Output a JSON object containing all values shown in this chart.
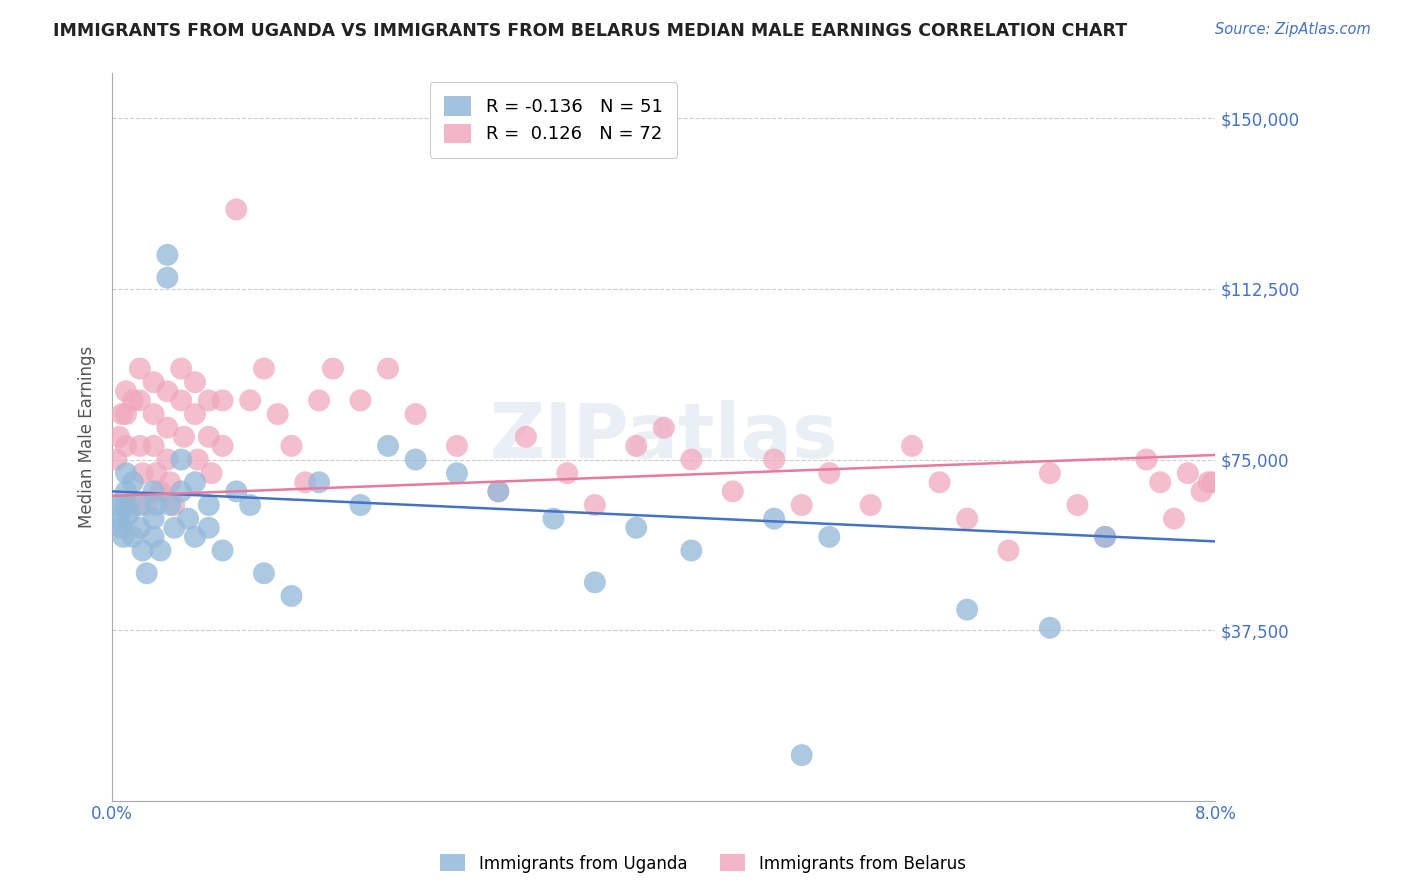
{
  "title": "IMMIGRANTS FROM UGANDA VS IMMIGRANTS FROM BELARUS MEDIAN MALE EARNINGS CORRELATION CHART",
  "source": "Source: ZipAtlas.com",
  "ylabel": "Median Male Earnings",
  "xlim": [
    0.0,
    0.08
  ],
  "ylim": [
    0,
    160000
  ],
  "yticks": [
    0,
    37500,
    75000,
    112500,
    150000
  ],
  "ytick_labels": [
    "",
    "$37,500",
    "$75,000",
    "$112,500",
    "$150,000"
  ],
  "xticks": [
    0.0,
    0.01,
    0.02,
    0.03,
    0.04,
    0.05,
    0.06,
    0.07,
    0.08
  ],
  "xtick_labels": [
    "0.0%",
    "",
    "",
    "",
    "",
    "",
    "",
    "",
    "8.0%"
  ],
  "background_color": "#ffffff",
  "title_color": "#222222",
  "axis_label_color": "#555555",
  "tick_color": "#4472c4",
  "grid_color": "#cccccc",
  "line_color_uganda": "#4472c4",
  "line_color_belarus": "#e8799f",
  "color_uganda": "#92b8d8",
  "color_belarus": "#f0a8be",
  "watermark": "ZIPatlas",
  "uganda_label": "Immigrants from Uganda",
  "belarus_label": "Immigrants from Belarus",
  "legend_uganda": "R = -0.136   N = 51",
  "legend_belarus": "R =  0.126   N = 72",
  "uganda_x": [
    0.0004,
    0.0005,
    0.0006,
    0.0008,
    0.001,
    0.001,
    0.001,
    0.0012,
    0.0015,
    0.0015,
    0.002,
    0.002,
    0.0022,
    0.0025,
    0.003,
    0.003,
    0.003,
    0.0032,
    0.0035,
    0.004,
    0.004,
    0.0042,
    0.0045,
    0.005,
    0.005,
    0.0055,
    0.006,
    0.006,
    0.007,
    0.007,
    0.008,
    0.009,
    0.01,
    0.011,
    0.013,
    0.015,
    0.018,
    0.02,
    0.022,
    0.025,
    0.028,
    0.032,
    0.035,
    0.038,
    0.042,
    0.048,
    0.05,
    0.052,
    0.062,
    0.068,
    0.072
  ],
  "uganda_y": [
    65000,
    62000,
    60000,
    58000,
    68000,
    72000,
    65000,
    63000,
    70000,
    58000,
    65000,
    60000,
    55000,
    50000,
    68000,
    62000,
    58000,
    65000,
    55000,
    120000,
    115000,
    65000,
    60000,
    75000,
    68000,
    62000,
    70000,
    58000,
    65000,
    60000,
    55000,
    68000,
    65000,
    50000,
    45000,
    70000,
    65000,
    78000,
    75000,
    72000,
    68000,
    62000,
    48000,
    60000,
    55000,
    62000,
    10000,
    58000,
    42000,
    38000,
    58000
  ],
  "belarus_x": [
    0.0003,
    0.0005,
    0.0007,
    0.001,
    0.001,
    0.001,
    0.0012,
    0.0015,
    0.002,
    0.002,
    0.002,
    0.0022,
    0.0025,
    0.003,
    0.003,
    0.003,
    0.0032,
    0.0035,
    0.004,
    0.004,
    0.004,
    0.0042,
    0.0045,
    0.005,
    0.005,
    0.0052,
    0.006,
    0.006,
    0.0062,
    0.007,
    0.007,
    0.0072,
    0.008,
    0.008,
    0.009,
    0.01,
    0.011,
    0.012,
    0.013,
    0.014,
    0.015,
    0.016,
    0.018,
    0.02,
    0.022,
    0.025,
    0.028,
    0.03,
    0.033,
    0.035,
    0.038,
    0.04,
    0.042,
    0.045,
    0.048,
    0.05,
    0.052,
    0.055,
    0.058,
    0.06,
    0.062,
    0.065,
    0.068,
    0.07,
    0.072,
    0.075,
    0.076,
    0.077,
    0.078,
    0.079,
    0.0795,
    0.0798
  ],
  "belarus_y": [
    75000,
    80000,
    85000,
    90000,
    85000,
    78000,
    65000,
    88000,
    95000,
    88000,
    78000,
    72000,
    65000,
    92000,
    85000,
    78000,
    72000,
    68000,
    90000,
    82000,
    75000,
    70000,
    65000,
    95000,
    88000,
    80000,
    92000,
    85000,
    75000,
    88000,
    80000,
    72000,
    88000,
    78000,
    130000,
    88000,
    95000,
    85000,
    78000,
    70000,
    88000,
    95000,
    88000,
    95000,
    85000,
    78000,
    68000,
    80000,
    72000,
    65000,
    78000,
    82000,
    75000,
    68000,
    75000,
    65000,
    72000,
    65000,
    78000,
    70000,
    62000,
    55000,
    72000,
    65000,
    58000,
    75000,
    70000,
    62000,
    72000,
    68000,
    70000,
    70000
  ]
}
